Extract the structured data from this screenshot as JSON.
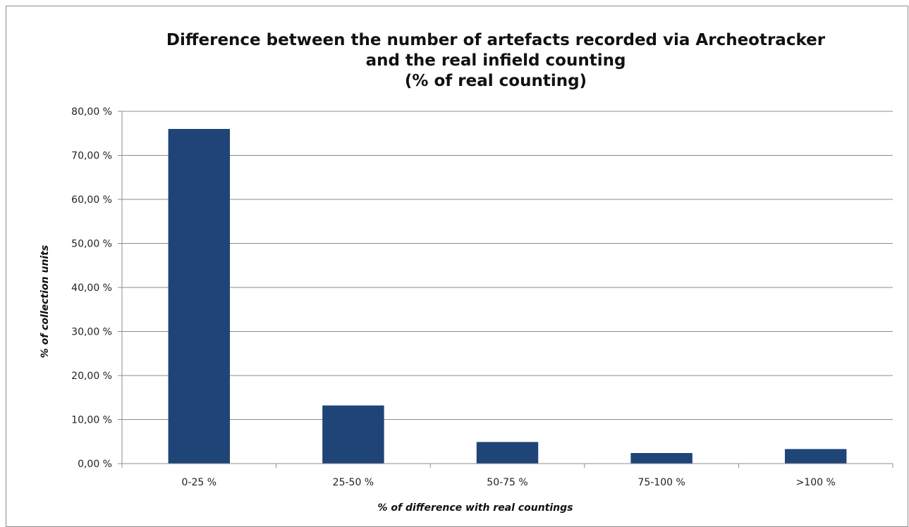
{
  "chart_data": {
    "type": "bar",
    "title_lines": [
      "Difference between the number of artefacts recorded via Archeotracker",
      "and the real infield counting",
      "(% of real counting)"
    ],
    "xlabel": "% of difference with real countings",
    "ylabel": "% of collection units",
    "categories": [
      "0-25 %",
      "25-50 %",
      "50-75 %",
      "75-100 %",
      ">100 %"
    ],
    "values": [
      76.0,
      13.2,
      4.9,
      2.4,
      3.3
    ],
    "ylim": [
      0,
      80
    ],
    "yticks": [
      0,
      10,
      20,
      30,
      40,
      50,
      60,
      70,
      80
    ],
    "ytick_labels": [
      "0,00 %",
      "10,00 %",
      "20,00 %",
      "30,00 %",
      "40,00 %",
      "50,00 %",
      "60,00 %",
      "70,00 %",
      "80,00 %"
    ],
    "grid": true,
    "legend": "none",
    "colors": {
      "bar": "#1f4477",
      "grid": "#8c8c8c",
      "axis": "#8c8c8c"
    }
  }
}
